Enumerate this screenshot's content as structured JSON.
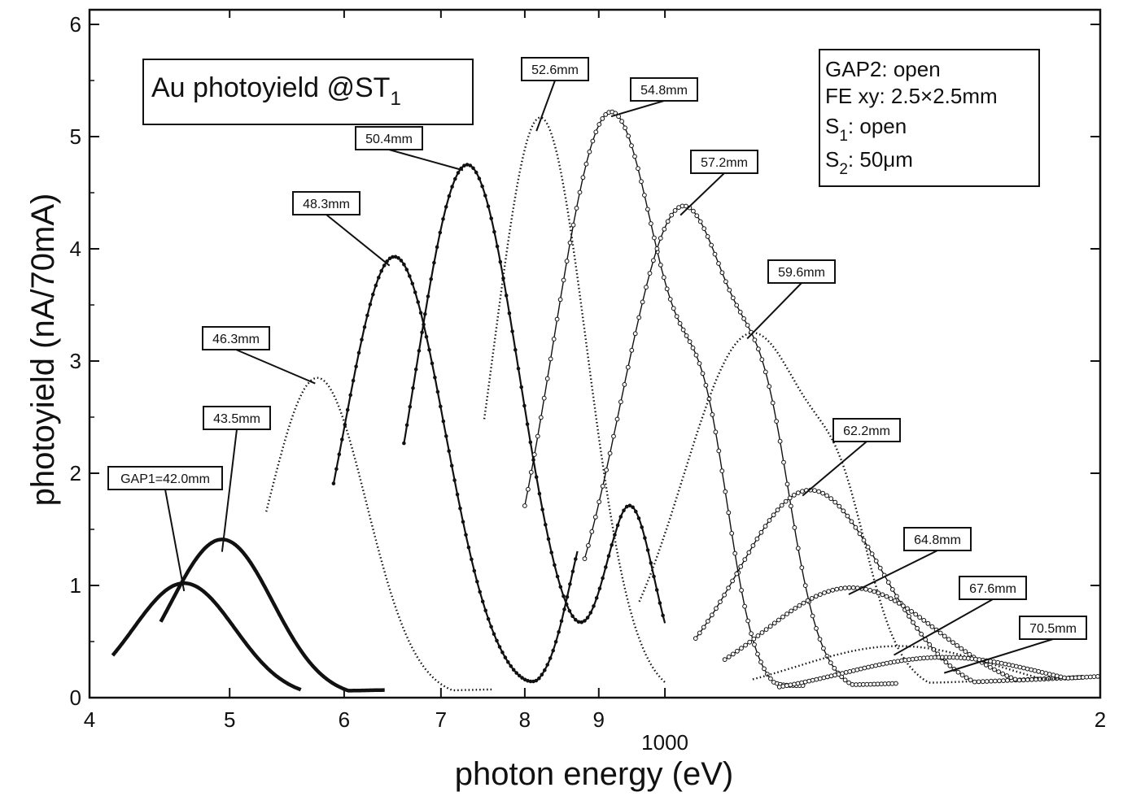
{
  "chart_data": {
    "type": "line",
    "title": "Au photoyield @ST",
    "title_subscript": "1",
    "xlabel": "photon energy (eV)",
    "ylabel": "photoyield (nA/70mA)",
    "xscale": "log",
    "xlim": [
      400,
      2000
    ],
    "ylim": [
      0,
      6
    ],
    "y_ticks": [
      0,
      1,
      2,
      3,
      4,
      5,
      6
    ],
    "x_ticks": [
      {
        "value": 400,
        "label": "4"
      },
      {
        "value": 500,
        "label": "5"
      },
      {
        "value": 600,
        "label": "6"
      },
      {
        "value": 700,
        "label": "7"
      },
      {
        "value": 800,
        "label": "8"
      },
      {
        "value": 900,
        "label": "9"
      },
      {
        "value": 1000,
        "label": "1000"
      },
      {
        "value": 2000,
        "label": "2"
      }
    ],
    "info_lines": [
      {
        "main": "GAP2: open",
        "sub": "",
        "rest": ""
      },
      {
        "main": "FE xy: 2.5×2.5mm",
        "sub": "",
        "rest": ""
      },
      {
        "main": "S",
        "sub": "1",
        "rest": ": open"
      },
      {
        "main": "S",
        "sub": "2",
        "rest": ": 50μm"
      }
    ],
    "series": [
      {
        "name": "GAP1=42.0mm",
        "peak_x": 465,
        "peak_y": 1.02,
        "width": 0.035,
        "start": 415,
        "end": 560,
        "style": "thick",
        "harmonics": []
      },
      {
        "name": "43.5mm",
        "peak_x": 494,
        "peak_y": 1.41,
        "width": 0.035,
        "start": 448,
        "end": 640,
        "style": "thick",
        "harmonics": []
      },
      {
        "name": "46.3mm",
        "peak_x": 575,
        "peak_y": 2.85,
        "width": 0.034,
        "start": 530,
        "end": 760,
        "style": "dotted",
        "harmonics": []
      },
      {
        "name": "48.3mm",
        "peak_x": 650,
        "peak_y": 3.93,
        "width": 0.035,
        "start": 590,
        "end": 870,
        "style": "dots",
        "harmonics": [
          {
            "x": 892,
            "y": 1.54,
            "w": 0.016
          }
        ]
      },
      {
        "name": "50.4mm",
        "peak_x": 730,
        "peak_y": 4.75,
        "width": 0.036,
        "start": 660,
        "end": 1000,
        "style": "dots",
        "harmonics": [
          {
            "x": 945,
            "y": 1.63,
            "w": 0.017
          }
        ]
      },
      {
        "name": "52.6mm",
        "peak_x": 820,
        "peak_y": 5.17,
        "width": 0.032,
        "start": 750,
        "end": 1000,
        "style": "dotted",
        "harmonics": []
      },
      {
        "name": "54.8mm",
        "peak_x": 918,
        "peak_y": 5.22,
        "width": 0.04,
        "start": 800,
        "end": 1250,
        "style": "circles",
        "harmonics": [
          {
            "x": 1070,
            "y": 1.42,
            "w": 0.017
          }
        ]
      },
      {
        "name": "57.2mm",
        "peak_x": 1030,
        "peak_y": 4.38,
        "width": 0.043,
        "start": 880,
        "end": 1450,
        "style": "circles",
        "harmonics": [
          {
            "x": 1180,
            "y": 1.08,
            "w": 0.017
          }
        ]
      },
      {
        "name": "59.6mm",
        "peak_x": 1150,
        "peak_y": 3.25,
        "width": 0.048,
        "start": 960,
        "end": 1650,
        "style": "dotted",
        "harmonics": [
          {
            "x": 1330,
            "y": 0.68,
            "w": 0.018
          }
        ]
      },
      {
        "name": "62.2mm",
        "peak_x": 1260,
        "peak_y": 1.85,
        "width": 0.05,
        "start": 1050,
        "end": 1850,
        "style": "circles",
        "harmonics": []
      },
      {
        "name": "64.8mm",
        "peak_x": 1345,
        "peak_y": 0.98,
        "width": 0.06,
        "start": 1100,
        "end": 1950,
        "style": "circles",
        "harmonics": []
      },
      {
        "name": "67.6mm",
        "peak_x": 1450,
        "peak_y": 0.46,
        "width": 0.07,
        "start": 1150,
        "end": 2000,
        "style": "dotted",
        "harmonics": []
      },
      {
        "name": "70.5mm",
        "peak_x": 1560,
        "peak_y": 0.36,
        "width": 0.07,
        "start": 1200,
        "end": 2000,
        "style": "circles",
        "harmonics": []
      }
    ]
  }
}
